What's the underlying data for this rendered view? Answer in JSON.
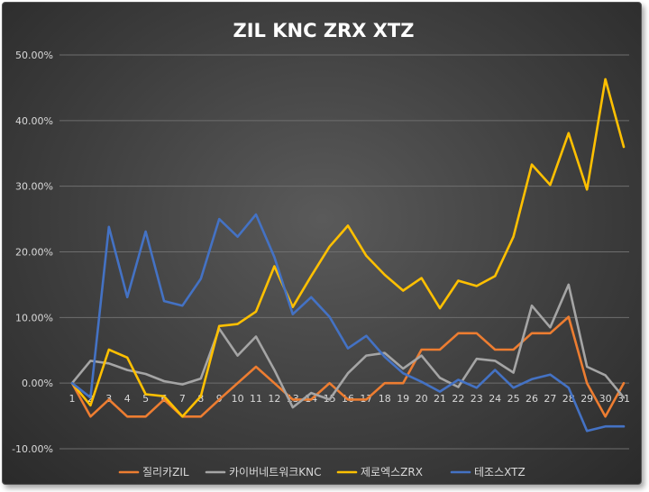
{
  "chart_data": {
    "type": "line",
    "title": "ZIL KNC ZRX XTZ",
    "xlabel": "",
    "ylabel": "",
    "ylim": [
      -0.1,
      0.5
    ],
    "yticks": [
      "-10.00%",
      "0.00%",
      "10.00%",
      "20.00%",
      "30.00%",
      "40.00%",
      "50.00%"
    ],
    "ytick_values": [
      -0.1,
      0.0,
      0.1,
      0.2,
      0.3,
      0.4,
      0.5
    ],
    "categories": [
      "1",
      "2",
      "3",
      "4",
      "5",
      "6",
      "7",
      "8",
      "9",
      "10",
      "11",
      "12",
      "13",
      "14",
      "15",
      "16",
      "17",
      "18",
      "19",
      "20",
      "21",
      "22",
      "23",
      "24",
      "25",
      "26",
      "27",
      "28",
      "29",
      "30",
      "31"
    ],
    "grid": true,
    "legend_position": "bottom",
    "series": [
      {
        "name": "질리카ZIL",
        "color": "#ed7d31",
        "values": [
          0.0,
          -0.051,
          -0.025,
          -0.051,
          -0.051,
          -0.025,
          -0.051,
          -0.051,
          -0.025,
          0.0,
          0.025,
          0.0,
          -0.025,
          -0.025,
          0.0,
          -0.025,
          -0.025,
          0.0,
          0.0,
          0.051,
          0.051,
          0.076,
          0.076,
          0.051,
          0.051,
          0.076,
          0.076,
          0.101,
          0.0,
          -0.051,
          0.0
        ]
      },
      {
        "name": "카이버네트워크KNC",
        "color": "#a5a5a5",
        "values": [
          0.0,
          0.034,
          0.03,
          0.02,
          0.014,
          0.003,
          -0.002,
          0.007,
          0.083,
          0.042,
          0.071,
          0.02,
          -0.037,
          -0.015,
          -0.025,
          0.015,
          0.042,
          0.046,
          0.022,
          0.042,
          0.008,
          -0.006,
          0.037,
          0.034,
          0.016,
          0.118,
          0.085,
          0.15,
          0.025,
          0.012,
          -0.022
        ]
      },
      {
        "name": "제로엑스ZRX",
        "color": "#ffc000",
        "values": [
          0.0,
          -0.034,
          0.051,
          0.039,
          -0.017,
          -0.02,
          -0.051,
          -0.02,
          0.087,
          0.09,
          0.109,
          0.178,
          0.116,
          0.163,
          0.208,
          0.24,
          0.194,
          0.165,
          0.141,
          0.16,
          0.114,
          0.156,
          0.148,
          0.163,
          0.223,
          0.333,
          0.302,
          0.381,
          0.295,
          0.463,
          0.36
        ]
      },
      {
        "name": "테조스XTZ",
        "color": "#4472c4",
        "values": [
          0.0,
          -0.022,
          0.238,
          0.131,
          0.231,
          0.125,
          0.118,
          0.159,
          0.25,
          0.223,
          0.257,
          0.192,
          0.105,
          0.131,
          0.101,
          0.053,
          0.072,
          0.04,
          0.015,
          0.002,
          -0.013,
          0.005,
          -0.007,
          0.02,
          -0.007,
          0.006,
          0.013,
          -0.007,
          -0.073,
          -0.066,
          -0.066
        ]
      }
    ]
  }
}
